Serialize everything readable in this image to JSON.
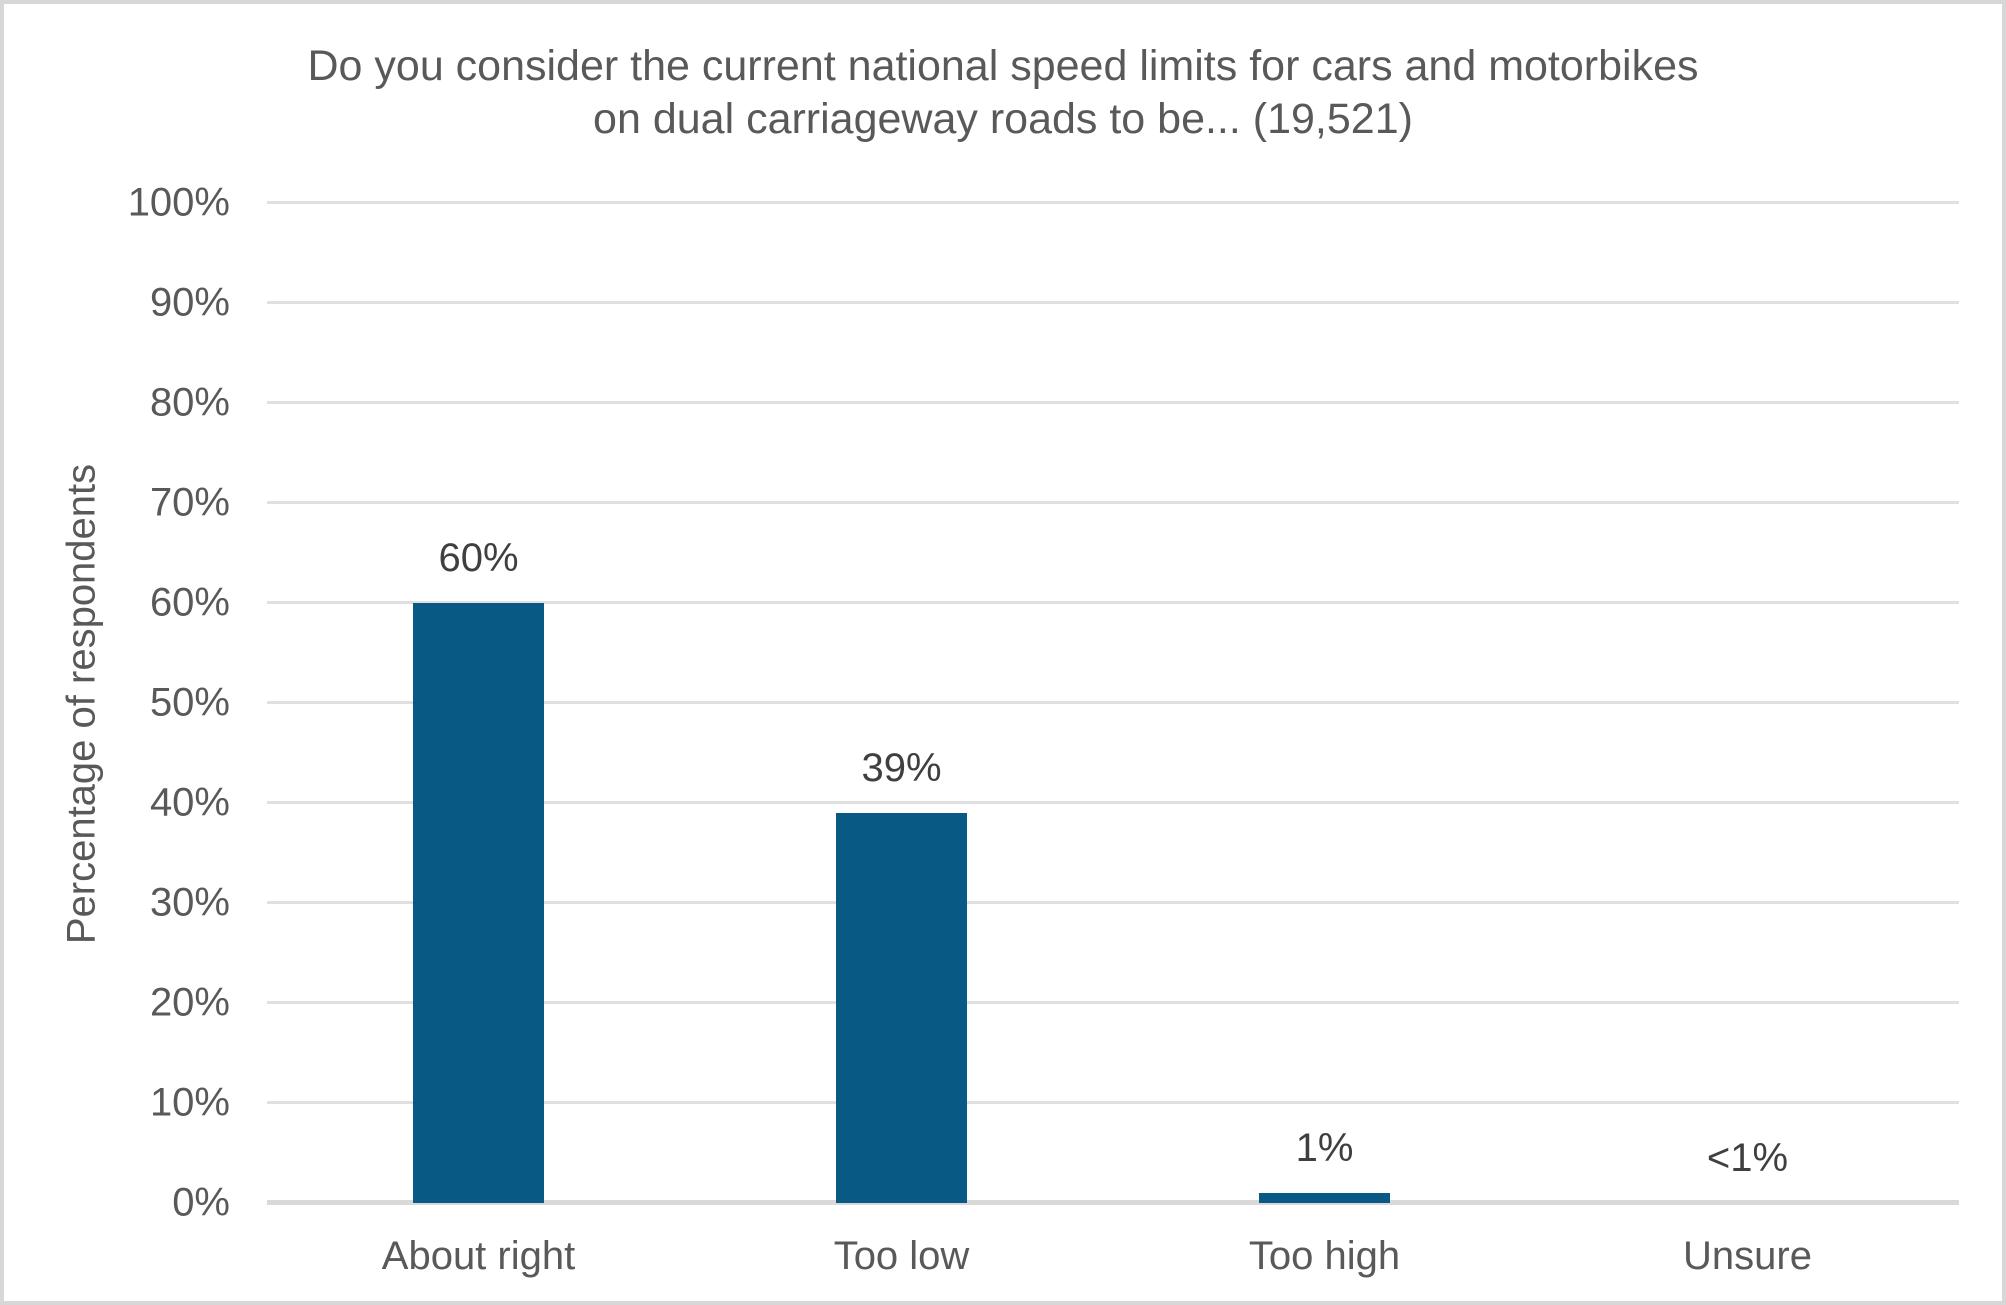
{
  "window": {
    "background": "#ffffff",
    "frame_border_color": "#d7d7d7"
  },
  "chart_data": {
    "type": "bar",
    "title": "Do you consider the current national speed limits for cars and motorbikes on dual carriageway roads to be... (19,521)",
    "title_lines": [
      "Do you consider the current national speed limits for cars and motorbikes",
      "on dual carriageway roads to be... (19,521)"
    ],
    "xlabel": "",
    "ylabel": "Percentage of respondents",
    "categories": [
      "About right",
      "Too low",
      "Too high",
      "Unsure"
    ],
    "values": [
      60,
      39,
      1,
      0.4
    ],
    "value_labels": [
      "60%",
      "39%",
      "1%",
      "<1%"
    ],
    "respondent_count_shown_in_title": "19,521",
    "ylim": [
      0,
      100
    ],
    "yticks": [
      0,
      10,
      20,
      30,
      40,
      50,
      60,
      70,
      80,
      90,
      100
    ],
    "ytick_labels": [
      "0%",
      "10%",
      "20%",
      "30%",
      "40%",
      "50%",
      "60%",
      "70%",
      "80%",
      "90%",
      "100%"
    ],
    "grid": true,
    "legend_position": "none",
    "colors": {
      "bar": "#085a84",
      "gridline": "#e0e0e0",
      "axis_line": "#d9d9d9",
      "title_text": "#595959",
      "tick_text": "#595959",
      "axis_title_text": "#595959",
      "data_label_text": "#3f3f3f"
    }
  }
}
